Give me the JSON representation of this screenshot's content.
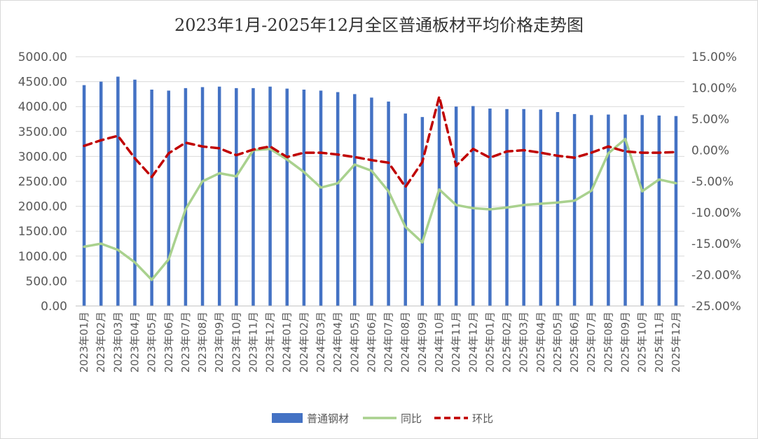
{
  "chart_data": {
    "type": "bar",
    "title": "2023年1月-2025年12月全区普通板材平均价格走势图",
    "categories": [
      "2023年01月",
      "2023年02月",
      "2023年03月",
      "2023年04月",
      "2023年05月",
      "2023年06月",
      "2023年07月",
      "2023年08月",
      "2023年09月",
      "2023年10月",
      "2023年11月",
      "2023年12月",
      "2024年01月",
      "2024年02月",
      "2024年03月",
      "2024年04月",
      "2024年05月",
      "2024年06月",
      "2024年07月",
      "2024年08月",
      "2024年09月",
      "2024年10月",
      "2024年11月",
      "2024年12月",
      "2025年01月",
      "2025年02月",
      "2025年03月",
      "2025年04月",
      "2025年05月",
      "2025年06月",
      "2025年07月",
      "2025年08月",
      "2025年09月",
      "2025年10月",
      "2025年11月",
      "2025年12月"
    ],
    "y_left": {
      "ylim": [
        0,
        5000
      ],
      "ticks": [
        "0.00",
        "500.00",
        "1000.00",
        "1500.00",
        "2000.00",
        "2500.00",
        "3000.00",
        "3500.00",
        "4000.00",
        "4500.00",
        "5000.00"
      ]
    },
    "y_right": {
      "ylim": [
        -25,
        15
      ],
      "ticks": [
        "-25.00%",
        "-20.00%",
        "-15.00%",
        "-10.00%",
        "-5.00%",
        "0.00%",
        "5.00%",
        "10.00%",
        "15.00%"
      ]
    },
    "series": [
      {
        "name": "普通钢材",
        "kind": "bar",
        "axis": "left",
        "color": "#4472C4",
        "values": [
          4430,
          4500,
          4600,
          4540,
          4340,
          4320,
          4370,
          4390,
          4400,
          4370,
          4370,
          4400,
          4360,
          4340,
          4320,
          4290,
          4250,
          4180,
          4100,
          3860,
          3790,
          4020,
          4000,
          4010,
          3960,
          3950,
          3950,
          3940,
          3890,
          3850,
          3830,
          3840,
          3840,
          3830,
          3820,
          3810
        ]
      },
      {
        "name": "同比",
        "kind": "line",
        "axis": "right",
        "color": "#A9D18E",
        "values": [
          -15.5,
          -15.0,
          -16.0,
          -18.0,
          -20.8,
          -17.5,
          -9.5,
          -5.0,
          -3.7,
          -4.2,
          0.0,
          0.2,
          -1.5,
          -3.5,
          -6.0,
          -5.3,
          -2.3,
          -3.3,
          -6.6,
          -12.3,
          -14.8,
          -6.3,
          -8.8,
          -9.3,
          -9.5,
          -9.2,
          -8.8,
          -8.6,
          -8.4,
          -8.1,
          -6.5,
          -0.5,
          1.8,
          -6.6,
          -4.7,
          -5.3
        ]
      },
      {
        "name": "环比",
        "kind": "line",
        "axis": "right",
        "color": "#C00000",
        "values": [
          0.7,
          1.6,
          2.3,
          -1.3,
          -4.3,
          -0.5,
          1.2,
          0.6,
          0.3,
          -0.8,
          0.1,
          0.6,
          -1.1,
          -0.4,
          -0.4,
          -0.7,
          -1.1,
          -1.6,
          -2.0,
          -5.9,
          -1.9,
          8.6,
          -2.5,
          0.2,
          -1.2,
          -0.2,
          0.0,
          -0.4,
          -0.9,
          -1.2,
          -0.4,
          0.6,
          -0.2,
          -0.4,
          -0.4,
          -0.3
        ]
      }
    ],
    "legend_position": "bottom",
    "grid": true
  }
}
